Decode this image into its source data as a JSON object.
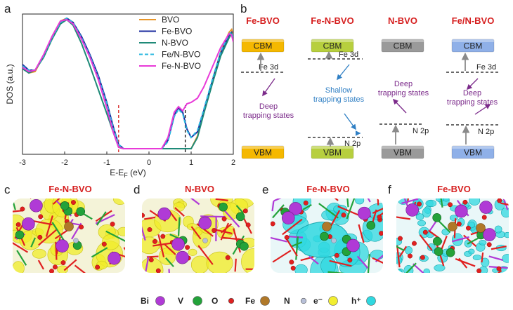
{
  "panel_letters": [
    "a",
    "b",
    "c",
    "d",
    "e",
    "f"
  ],
  "colors": {
    "BVO": "#e8962a",
    "Fe-BVO": "#1a2a9e",
    "N-BVO": "#1f8a78",
    "Fe/N-BVO": "#2bb8e0",
    "Fe-N-BVO": "#e83ad8",
    "cbm_vbm_fill": {
      "Fe-BVO": "#f5b800",
      "Fe-N-BVO": "#b7cf3e",
      "N-BVO": "#9a9a9a",
      "Fe/N-BVO": "#8fb0e8"
    },
    "title_red": "#d62020",
    "deep_purple": "#7b2a8a",
    "shallow_blue": "#2f7fc4"
  },
  "chart_data": {
    "type": "line",
    "ylabel": "DOS (a.u.)",
    "xlabel_main": "E-E",
    "xlabel_sub": "F",
    "xlabel_unit": " (eV)",
    "xlim": [
      -3,
      2
    ],
    "ylim": [
      0,
      1
    ],
    "xticks": [
      "-3",
      "-2",
      "-1",
      "0",
      "1",
      "2"
    ],
    "legend_position": "top-right",
    "vlines": [
      {
        "x": -0.72,
        "color": "#d62020",
        "style": "dashed"
      },
      {
        "x": 0.86,
        "color": "#111111",
        "style": "dashed"
      }
    ],
    "series": [
      {
        "name": "BVO",
        "style": "solid",
        "x": [
          -3,
          -2.85,
          -2.7,
          -2.5,
          -2.3,
          -2.1,
          -1.95,
          -1.8,
          -1.6,
          -1.4,
          -1.2,
          -1.0,
          -0.85,
          -0.72,
          -0.6,
          0.3,
          0.5,
          0.55,
          0.8,
          1.0,
          1.15,
          1.3,
          1.5,
          1.7,
          1.9,
          1.96,
          2.0
        ],
        "y": [
          0.62,
          0.58,
          0.59,
          0.7,
          0.84,
          0.95,
          0.97,
          0.94,
          0.83,
          0.7,
          0.55,
          0.36,
          0.18,
          0.06,
          0.04,
          0.04,
          0.04,
          0.04,
          0.04,
          0.04,
          0.13,
          0.3,
          0.52,
          0.73,
          0.87,
          0.89,
          0.84
        ]
      },
      {
        "name": "Fe-BVO",
        "style": "solid",
        "x": [
          -3,
          -2.85,
          -2.7,
          -2.5,
          -2.3,
          -2.1,
          -1.95,
          -1.8,
          -1.6,
          -1.4,
          -1.2,
          -1.0,
          -0.85,
          -0.72,
          -0.6,
          0.3,
          0.45,
          0.6,
          0.7,
          0.8,
          0.9,
          1.0,
          1.15,
          1.3,
          1.5,
          1.7,
          1.9,
          1.96,
          2.0
        ],
        "y": [
          0.64,
          0.6,
          0.6,
          0.7,
          0.83,
          0.94,
          0.97,
          0.94,
          0.84,
          0.71,
          0.56,
          0.37,
          0.2,
          0.07,
          0.04,
          0.04,
          0.1,
          0.28,
          0.33,
          0.3,
          0.18,
          0.12,
          0.16,
          0.31,
          0.52,
          0.72,
          0.85,
          0.87,
          0.83
        ]
      },
      {
        "name": "N-BVO",
        "style": "solid",
        "x": [
          -3,
          -2.85,
          -2.7,
          -2.5,
          -2.3,
          -2.1,
          -1.95,
          -1.8,
          -1.6,
          -1.4,
          -1.2,
          -1.0,
          -0.85,
          -0.72,
          -0.6,
          0.3,
          0.5,
          0.55,
          0.8,
          1.0,
          1.15,
          1.3,
          1.5,
          1.7,
          1.9,
          1.96,
          2.0
        ],
        "y": [
          0.61,
          0.58,
          0.6,
          0.69,
          0.82,
          0.93,
          0.96,
          0.92,
          0.79,
          0.63,
          0.46,
          0.29,
          0.16,
          0.05,
          0.04,
          0.04,
          0.04,
          0.04,
          0.04,
          0.04,
          0.12,
          0.29,
          0.5,
          0.7,
          0.83,
          0.86,
          0.81
        ]
      },
      {
        "name": "Fe/N-BVO",
        "style": "dashed",
        "x": [
          -3,
          -2.85,
          -2.7,
          -2.5,
          -2.3,
          -2.1,
          -1.95,
          -1.8,
          -1.6,
          -1.4,
          -1.2,
          -1.0,
          -0.85,
          -0.72,
          -0.6,
          0.3,
          0.45,
          0.6,
          0.7,
          0.8,
          0.9,
          1.0,
          1.15,
          1.3,
          1.5,
          1.7,
          1.9,
          1.96,
          2.0
        ],
        "y": [
          0.63,
          0.6,
          0.6,
          0.7,
          0.83,
          0.94,
          0.97,
          0.94,
          0.83,
          0.7,
          0.55,
          0.36,
          0.19,
          0.07,
          0.04,
          0.04,
          0.09,
          0.27,
          0.32,
          0.29,
          0.17,
          0.12,
          0.17,
          0.32,
          0.53,
          0.73,
          0.86,
          0.87,
          0.82
        ]
      },
      {
        "name": "Fe-N-BVO",
        "style": "solid",
        "x": [
          -3,
          -2.85,
          -2.7,
          -2.5,
          -2.3,
          -2.1,
          -1.95,
          -1.8,
          -1.6,
          -1.4,
          -1.2,
          -1.0,
          -0.85,
          -0.72,
          -0.6,
          0.3,
          0.45,
          0.6,
          0.7,
          0.8,
          0.9,
          1.0,
          1.15,
          1.3,
          1.5,
          1.7,
          1.9,
          1.96,
          2.0
        ],
        "y": [
          0.62,
          0.59,
          0.6,
          0.71,
          0.84,
          0.95,
          0.96,
          0.93,
          0.82,
          0.69,
          0.53,
          0.33,
          0.16,
          0.05,
          0.04,
          0.04,
          0.12,
          0.3,
          0.34,
          0.31,
          0.36,
          0.37,
          0.4,
          0.48,
          0.62,
          0.76,
          0.86,
          0.85,
          0.8
        ]
      }
    ]
  },
  "energy_diagram": {
    "columns": [
      {
        "title": "Fe-BVO",
        "cbm": "CBM",
        "vbm": "VBM",
        "levels": [
          {
            "label": "Fe 3d"
          }
        ],
        "trap_text": [
          "Deep",
          "trapping states"
        ],
        "trap_type": "deep"
      },
      {
        "title": "Fe-N-BVO",
        "cbm": "CBM",
        "vbm": "VBM",
        "levels": [
          {
            "label": "Fe 3d"
          },
          {
            "label": "N 2p"
          }
        ],
        "trap_text": [
          "Shallow",
          "trapping states"
        ],
        "trap_type": "shallow"
      },
      {
        "title": "N-BVO",
        "cbm": "CBM",
        "vbm": "VBM",
        "levels": [
          {
            "label": "N 2p"
          }
        ],
        "trap_text": [
          "Deep",
          "trapping states"
        ],
        "trap_type": "deep"
      },
      {
        "title": "Fe/N-BVO",
        "cbm": "CBM",
        "vbm": "VBM",
        "levels": [
          {
            "label": "Fe 3d"
          },
          {
            "label": "N 2p"
          }
        ],
        "trap_text": [
          "Deep",
          "trapping states"
        ],
        "trap_type": "deep"
      }
    ]
  },
  "structure_panels": [
    {
      "letter": "c",
      "title": "Fe-N-BVO",
      "density": "electron"
    },
    {
      "letter": "d",
      "title": "N-BVO",
      "density": "electron"
    },
    {
      "letter": "e",
      "title": "Fe-N-BVO",
      "density": "hole"
    },
    {
      "letter": "f",
      "title": "Fe-BVO",
      "density": "hole"
    }
  ],
  "atom_legend": [
    {
      "label": "Bi",
      "color": "#b03ad6"
    },
    {
      "label": "V",
      "color": "#23a23a"
    },
    {
      "label": "O",
      "color": "#e02020"
    },
    {
      "label": "Fe",
      "color": "#b07828"
    },
    {
      "label": "N",
      "color": "#b8c0d8"
    },
    {
      "label": "e⁻",
      "color": "#f2ee30"
    },
    {
      "label": "h⁺",
      "color": "#30d8e0"
    }
  ]
}
